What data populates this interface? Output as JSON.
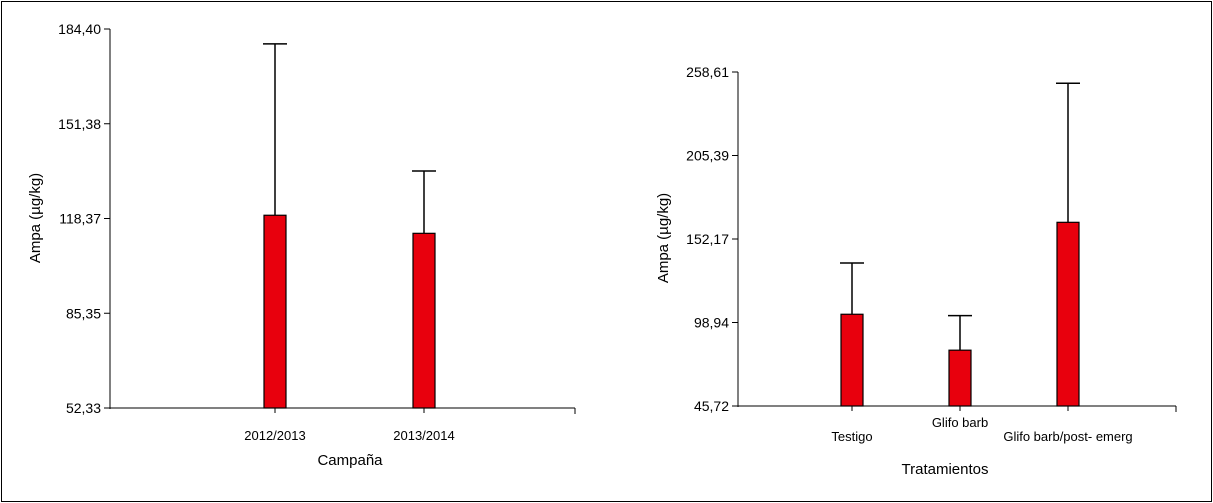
{
  "chart_data": [
    {
      "type": "bar",
      "xlabel": "Campaña",
      "ylabel": "Ampa (µg/kg)",
      "ylim": [
        52.33,
        184.4
      ],
      "yticks": [
        "52,33",
        "85,35",
        "118,37",
        "151,38",
        "184,40"
      ],
      "categories": [
        "2012/2013",
        "2013/2014"
      ],
      "values": [
        119.5,
        113.2
      ],
      "error_upper": [
        179.2,
        134.9
      ],
      "bar_color": "#e8000d",
      "grid": false
    },
    {
      "type": "bar",
      "xlabel": "Tratamientos",
      "ylabel": "Ampa (µg/kg)",
      "ylim": [
        45.72,
        258.61
      ],
      "yticks": [
        "45,72",
        "98,94",
        "152,17",
        "205,39",
        "258,61"
      ],
      "categories": [
        "Testigo",
        "Glifo barb",
        "Glifo barb/post- emerg"
      ],
      "values": [
        104.2,
        81.3,
        162.8
      ],
      "error_upper": [
        136.9,
        103.3,
        251.4
      ],
      "bar_color": "#e8000d",
      "grid": false
    }
  ]
}
